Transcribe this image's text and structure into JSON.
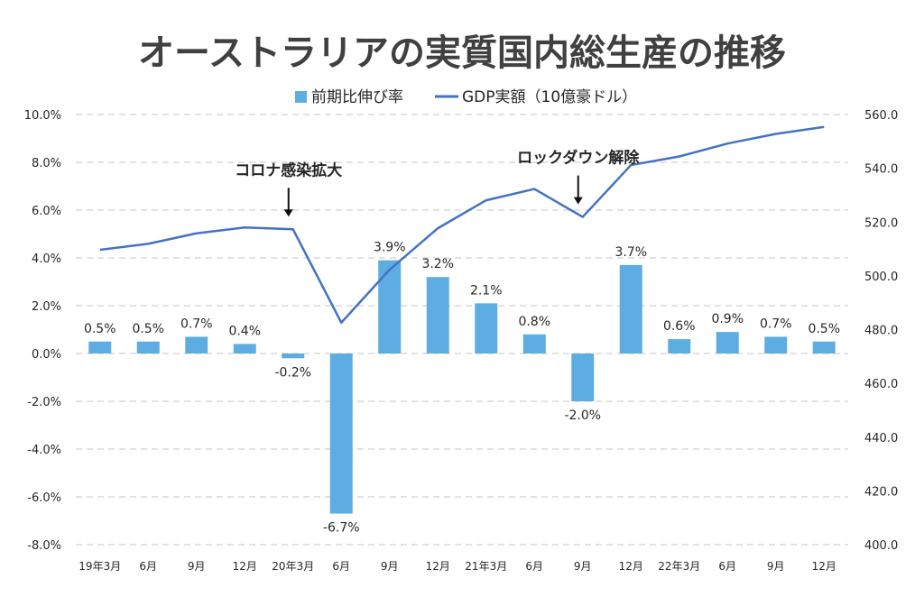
{
  "chart_data": {
    "type": "bar",
    "title": "オーストラリアの実質国内総生産の推移",
    "categories": [
      "19年3月",
      "6月",
      "9月",
      "12月",
      "20年3月",
      "6月",
      "9月",
      "12月",
      "21年3月",
      "6月",
      "9月",
      "12月",
      "22年3月",
      "6月",
      "9月",
      "12月"
    ],
    "series": [
      {
        "name": "前期比伸び率",
        "type": "bar",
        "axis": "left",
        "color": "#5dade2",
        "values": [
          0.5,
          0.5,
          0.7,
          0.4,
          -0.2,
          -6.7,
          3.9,
          3.2,
          2.1,
          0.8,
          -2.0,
          3.7,
          0.6,
          0.9,
          0.7,
          0.5
        ],
        "labels": [
          "0.5%",
          "0.5%",
          "0.7%",
          "0.4%",
          "-0.2%",
          "-6.7%",
          "3.9%",
          "3.2%",
          "2.1%",
          "0.8%",
          "-2.0%",
          "3.7%",
          "0.6%",
          "0.9%",
          "0.7%",
          "0.5%"
        ]
      },
      {
        "name": "GDP実額（10億豪ドル）",
        "type": "line",
        "axis": "right",
        "color": "#4472c4",
        "values": [
          509.7,
          511.9,
          515.8,
          518.0,
          517.3,
          482.6,
          502.3,
          517.7,
          528.1,
          532.3,
          521.9,
          541.2,
          544.4,
          549.2,
          552.8,
          555.4
        ]
      }
    ],
    "y_left": {
      "min": -8,
      "max": 10,
      "step": 2,
      "ticks": [
        "-8.0%",
        "-6.0%",
        "-4.0%",
        "-2.0%",
        "0.0%",
        "2.0%",
        "4.0%",
        "6.0%",
        "8.0%",
        "10.0%"
      ]
    },
    "y_right": {
      "min": 400,
      "max": 560,
      "step": 20,
      "ticks": [
        "400.0",
        "420.0",
        "440.0",
        "460.0",
        "480.0",
        "500.0",
        "520.0",
        "540.0",
        "560.0"
      ]
    },
    "grid": true,
    "legend_position": "top-center",
    "annotations": [
      {
        "text": "コロナ感染拡大",
        "category_index": 4
      },
      {
        "text": "ロックダウン解除",
        "category_index": 10
      }
    ]
  }
}
